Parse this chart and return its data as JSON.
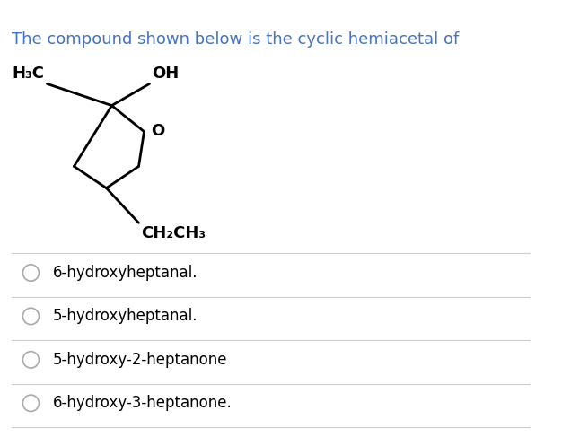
{
  "title": "The compound shown below is the cyclic hemiacetal of",
  "title_color": "#4472c4",
  "title_fontsize": 13,
  "bg_color": "#ffffff",
  "options": [
    "6-hydroxyheptanal.",
    "5-hydroxyheptanal.",
    "5-hydroxy-2-heptanone",
    "6-hydroxy-3-heptanone."
  ],
  "option_fontsize": 12,
  "option_color": "#000000",
  "divider_color": "#cccccc",
  "circle_color": "#aaaaaa",
  "label_h3c": "H₃C",
  "label_oh": "OH",
  "label_o": "O",
  "label_ch2ch3": "CH₂CH₃"
}
